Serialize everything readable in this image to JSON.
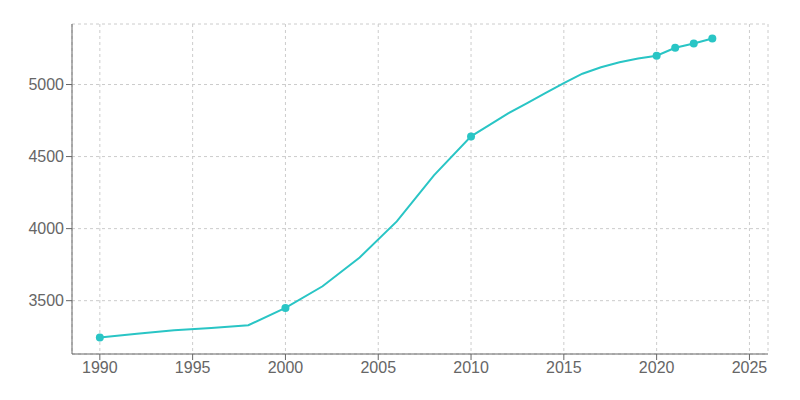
{
  "chart_data": {
    "type": "line",
    "series": [
      {
        "type": "line",
        "color": "#29c5c5",
        "line_style": "solid",
        "x": [
          1990,
          1992,
          1994,
          1996,
          1998,
          2000,
          2002,
          2004,
          2006,
          2008,
          2010,
          2011,
          2012,
          2013,
          2014,
          2015,
          2016,
          2017,
          2018,
          2019,
          2020,
          2021,
          2022,
          2023
        ],
        "values": [
          3245,
          3270,
          3295,
          3310,
          3330,
          3450,
          3600,
          3800,
          4050,
          4370,
          4640,
          4720,
          4800,
          4870,
          4940,
          5010,
          5075,
          5120,
          5155,
          5180,
          5200,
          5255,
          5285,
          5320
        ]
      },
      {
        "type": "scatter",
        "color": "#29c5c5",
        "marker": "circle",
        "x": [
          1990,
          2000,
          2010,
          2020,
          2021,
          2022,
          2023
        ],
        "values": [
          3245,
          3450,
          4640,
          5200,
          5255,
          5285,
          5320
        ]
      }
    ],
    "xlim": [
      1988.5,
      2026
    ],
    "ylim": [
      3130,
      5420
    ],
    "xticks": [
      1990,
      1995,
      2000,
      2005,
      2010,
      2015,
      2020,
      2025
    ],
    "yticks": [
      3500,
      4000,
      4500,
      5000
    ],
    "grid": true
  }
}
